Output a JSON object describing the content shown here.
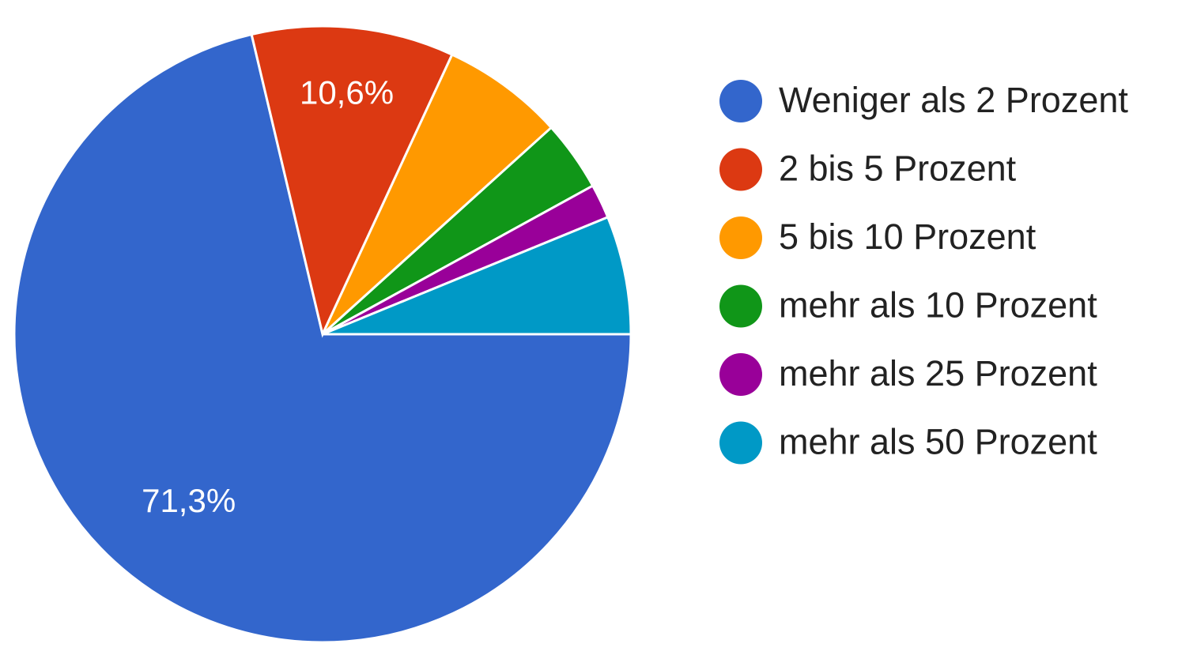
{
  "chart_data": {
    "type": "pie",
    "categories": [
      "Weniger als 2 Prozent",
      "2 bis 5 Prozent",
      "5 bis 10 Prozent",
      "mehr als 10 Prozent",
      "mehr als 25 Prozent",
      "mehr als 50 Prozent"
    ],
    "values": [
      71.3,
      10.6,
      6.4,
      3.7,
      1.8,
      6.2
    ],
    "value_labels": [
      "71,3%",
      "10,6%",
      null,
      null,
      null,
      null
    ],
    "colors": [
      "#3366cc",
      "#dc3912",
      "#ff9900",
      "#109618",
      "#990099",
      "#0099c6"
    ],
    "legend": "right"
  }
}
